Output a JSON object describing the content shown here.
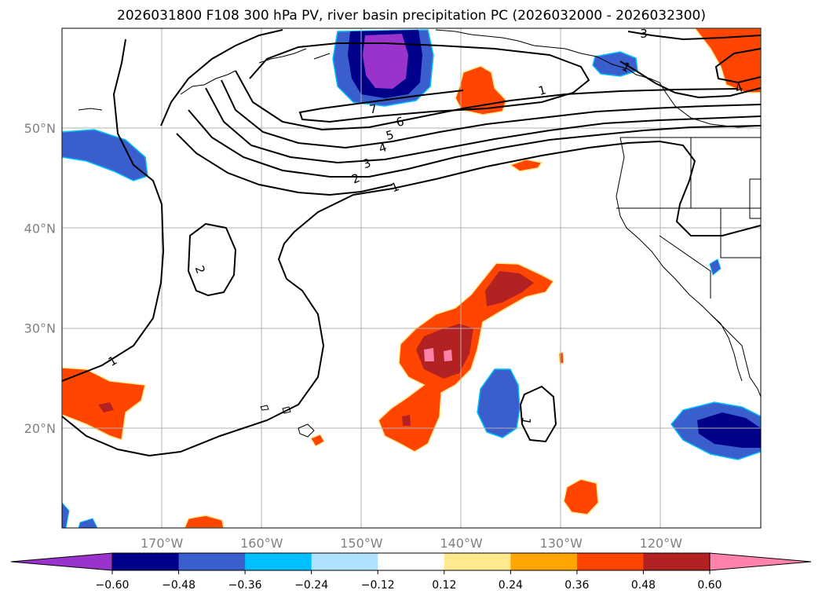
{
  "chart_data": {
    "type": "filled-contour-map",
    "title": "2026031800 F108 300 hPa PV, river basin precipitation PC (2026032000 - 2026032300)",
    "map": {
      "lon_range": [
        -180,
        -110
      ],
      "lat_range": [
        10,
        60
      ],
      "x_ticks": [
        -170,
        -160,
        -150,
        -140,
        -130,
        -120
      ],
      "x_tick_labels": [
        "170°W",
        "160°W",
        "150°W",
        "140°W",
        "130°W",
        "120°W"
      ],
      "y_ticks": [
        20,
        30,
        40,
        50
      ],
      "y_tick_labels": [
        "20°N",
        "30°N",
        "40°N",
        "50°N"
      ],
      "grid": true
    },
    "colorbar": {
      "levels": [
        -0.6,
        -0.48,
        -0.36,
        -0.24,
        -0.12,
        0.12,
        0.24,
        0.36,
        0.48,
        0.6
      ],
      "level_labels": [
        "−0.60",
        "−0.48",
        "−0.36",
        "−0.24",
        "−0.12",
        "0.12",
        "0.24",
        "0.36",
        "0.48",
        "0.60"
      ],
      "colors": [
        "#9933cc",
        "#00008b",
        "#3a5fcd",
        "#00bfff",
        "#b0e2ff",
        "#ffffff",
        "#ffe98f",
        "#ffa500",
        "#ff4500",
        "#b22222",
        "#ff82ab"
      ],
      "extend": "both"
    },
    "contour_labels": [
      "1",
      "2",
      "3",
      "4",
      "5",
      "6",
      "7",
      "1",
      "2",
      "1",
      "1",
      "1",
      "3",
      "4"
    ]
  }
}
